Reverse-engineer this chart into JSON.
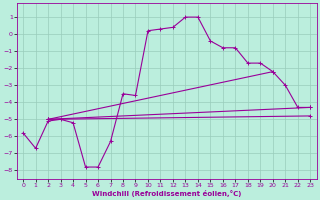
{
  "xlabel": "Windchill (Refroidissement éolien,°C)",
  "bg_color": "#bbeedd",
  "line_color": "#990099",
  "grid_color": "#99ccbb",
  "xlim": [
    -0.5,
    23.5
  ],
  "ylim": [
    -8.5,
    1.8
  ],
  "xticks": [
    0,
    1,
    2,
    3,
    4,
    5,
    6,
    7,
    8,
    9,
    10,
    11,
    12,
    13,
    14,
    15,
    16,
    17,
    18,
    19,
    20,
    21,
    22,
    23
  ],
  "yticks": [
    -8,
    -7,
    -6,
    -5,
    -4,
    -3,
    -2,
    -1,
    0,
    1
  ],
  "series0_x": [
    0,
    1,
    2,
    3,
    4,
    5,
    6,
    7,
    8,
    9,
    10,
    11,
    12,
    13,
    14,
    15,
    16,
    17,
    18,
    19,
    20,
    21,
    22,
    23
  ],
  "series0_y": [
    -5.8,
    -6.7,
    -5.1,
    -5.0,
    -5.2,
    -7.8,
    -7.8,
    -6.3,
    -3.5,
    -3.6,
    0.2,
    0.3,
    0.4,
    1.0,
    1.0,
    -0.4,
    -0.8,
    -0.8,
    -1.7,
    -1.7,
    -2.2,
    -3.0,
    -4.3,
    -4.3
  ],
  "line1_x": [
    2,
    23
  ],
  "line1_y": [
    -5.0,
    -4.3
  ],
  "line2_x": [
    2,
    20
  ],
  "line2_y": [
    -5.0,
    -2.2
  ],
  "line3_x": [
    2,
    23
  ],
  "line3_y": [
    -5.0,
    -4.8
  ]
}
